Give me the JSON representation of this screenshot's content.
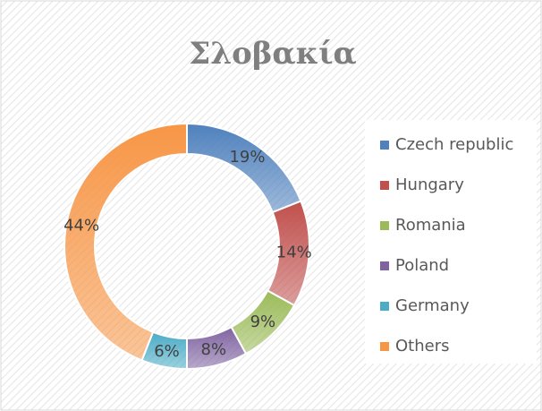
{
  "chart_data": {
    "type": "donut",
    "title": "Σλοβακία",
    "categories": [
      "Czech republic",
      "Hungary",
      "Romania",
      "Poland",
      "Germany",
      "Others"
    ],
    "values": [
      19,
      14,
      9,
      8,
      6,
      44
    ],
    "value_labels": [
      "19%",
      "14%",
      "9%",
      "8%",
      "6%",
      "44%"
    ],
    "colors": [
      "#4f81bd",
      "#c0504d",
      "#9bbb59",
      "#8064a2",
      "#4bacc6",
      "#f79646"
    ],
    "legend": "right"
  }
}
